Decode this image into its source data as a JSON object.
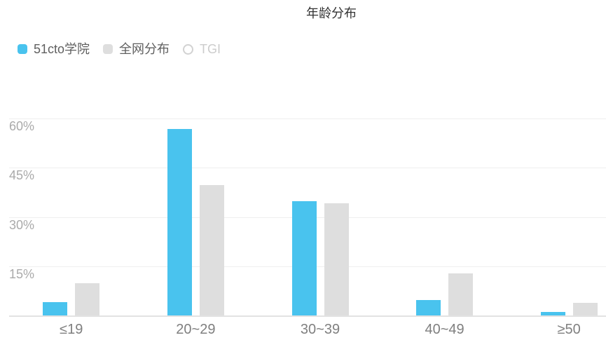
{
  "legend": [
    {
      "label": "51cto学院",
      "marker": "rect",
      "color": "#49c3ee",
      "enabled": true
    },
    {
      "label": "全网分布",
      "marker": "rect",
      "color": "#dedede",
      "enabled": true
    },
    {
      "label": "TGI",
      "marker": "circle",
      "color": "#d2d2d2",
      "enabled": false
    }
  ],
  "chart_data": {
    "type": "bar",
    "title": "年龄分布",
    "categories": [
      "≤19",
      "20~29",
      "30~39",
      "40~49",
      "≥50"
    ],
    "series": [
      {
        "name": "51cto学院",
        "color": "#49c3ee",
        "visible": true,
        "values": [
          4.0,
          56.8,
          34.9,
          4.6,
          1.0
        ]
      },
      {
        "name": "全网分布",
        "color": "#dedede",
        "visible": true,
        "values": [
          9.9,
          39.7,
          34.2,
          12.8,
          3.8
        ]
      },
      {
        "name": "TGI",
        "color": "#d2d2d2",
        "visible": false,
        "values": []
      }
    ],
    "xlabel": "",
    "ylabel": "",
    "ylim": [
      0,
      60
    ],
    "y_ticks": [
      {
        "value": 60,
        "label": "60%"
      },
      {
        "value": 45,
        "label": "45%"
      },
      {
        "value": 30,
        "label": "30%"
      },
      {
        "value": 15,
        "label": "15%"
      }
    ],
    "grid": true,
    "legend_position": "top-left",
    "title_position": "top-center"
  }
}
